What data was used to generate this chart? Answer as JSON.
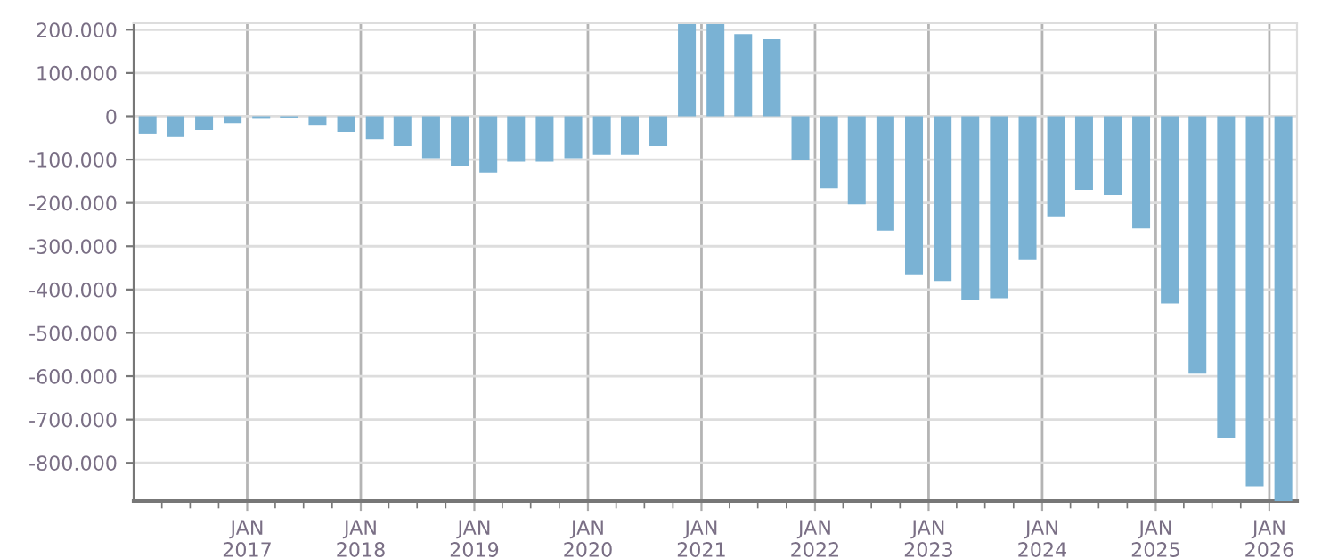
{
  "chart_data": {
    "type": "bar",
    "color": "#7ab2d4",
    "grid": true,
    "x": [
      "2016-02-15",
      "2016-05-15",
      "2016-08-15",
      "2016-11-15",
      "2017-02-15",
      "2017-05-15",
      "2017-08-15",
      "2017-11-15",
      "2018-02-15",
      "2018-05-15",
      "2018-08-15",
      "2018-11-15",
      "2019-02-15",
      "2019-05-15",
      "2019-08-15",
      "2019-11-15",
      "2020-02-15",
      "2020-05-15",
      "2020-08-15",
      "2020-11-15",
      "2021-02-15",
      "2021-05-15",
      "2021-08-15",
      "2021-11-15",
      "2022-02-15",
      "2022-05-15",
      "2022-08-15",
      "2022-11-15",
      "2023-02-15",
      "2023-05-15",
      "2023-08-15",
      "2023-11-15",
      "2024-02-15",
      "2024-05-15",
      "2024-08-15",
      "2024-11-15",
      "2025-02-15",
      "2025-05-15",
      "2025-08-15",
      "2025-11-15",
      "2026-02-15"
    ],
    "values": [
      -40000,
      -48000,
      -32000,
      -16000,
      -4000,
      -3000,
      -20000,
      -36000,
      -53000,
      -69000,
      -97000,
      -114000,
      -130000,
      -105000,
      -105000,
      -97000,
      -89000,
      -89000,
      -69000,
      213000,
      213000,
      190000,
      178000,
      -101000,
      -166000,
      -203000,
      -264000,
      -365000,
      -380000,
      -425000,
      -420000,
      -332000,
      -231000,
      -170000,
      -182000,
      -259000,
      -432000,
      -594000,
      -742000,
      -854000,
      -888000
    ],
    "ylim": [
      -888000,
      215000
    ],
    "yticks": [
      {
        "value": -800000,
        "label": "-800.000"
      },
      {
        "value": -700000,
        "label": "-700.000"
      },
      {
        "value": -600000,
        "label": "-600.000"
      },
      {
        "value": -500000,
        "label": "-500.000"
      },
      {
        "value": -400000,
        "label": "-400.000"
      },
      {
        "value": -300000,
        "label": "-300.000"
      },
      {
        "value": -200000,
        "label": "-200.000"
      },
      {
        "value": -100000,
        "label": "-100.000"
      },
      0,
      {
        "value": 100000,
        "label": "100.000"
      },
      {
        "value": 200000,
        "label": "200.000"
      }
    ],
    "xlim": [
      "2016-01-01",
      "2026-03-31"
    ],
    "xticks": [
      {
        "value": "2016-04-01",
        "label": null
      },
      {
        "value": "2016-07-01",
        "label": null
      },
      {
        "value": "2016-10-01",
        "label": null
      },
      {
        "value": "2017-01-01",
        "label": "JAN\n2017"
      },
      {
        "value": "2017-04-01",
        "label": null
      },
      {
        "value": "2017-07-01",
        "label": null
      },
      {
        "value": "2017-10-01",
        "label": null
      },
      {
        "value": "2018-01-01",
        "label": "JAN\n2018"
      },
      {
        "value": "2018-04-01",
        "label": null
      },
      {
        "value": "2018-07-01",
        "label": null
      },
      {
        "value": "2018-10-01",
        "label": null
      },
      {
        "value": "2019-01-01",
        "label": "JAN\n2019"
      },
      {
        "value": "2019-04-01",
        "label": null
      },
      {
        "value": "2019-07-01",
        "label": null
      },
      {
        "value": "2019-10-01",
        "label": null
      },
      {
        "value": "2020-01-01",
        "label": "JAN\n2020"
      },
      {
        "value": "2020-04-01",
        "label": null
      },
      {
        "value": "2020-07-01",
        "label": null
      },
      {
        "value": "2020-10-01",
        "label": null
      },
      {
        "value": "2021-01-01",
        "label": "JAN\n2021"
      },
      {
        "value": "2021-04-01",
        "label": null
      },
      {
        "value": "2021-07-01",
        "label": null
      },
      {
        "value": "2021-10-01",
        "label": null
      },
      {
        "value": "2022-01-01",
        "label": "JAN\n2022"
      },
      {
        "value": "2022-04-01",
        "label": null
      },
      {
        "value": "2022-07-01",
        "label": null
      },
      {
        "value": "2022-10-01",
        "label": null
      },
      {
        "value": "2023-01-01",
        "label": "JAN\n2023"
      },
      {
        "value": "2023-04-01",
        "label": null
      },
      {
        "value": "2023-07-01",
        "label": null
      },
      {
        "value": "2023-10-01",
        "label": null
      },
      {
        "value": "2024-01-01",
        "label": "JAN\n2024"
      },
      {
        "value": "2024-04-01",
        "label": null
      },
      {
        "value": "2024-07-01",
        "label": null
      },
      {
        "value": "2024-10-01",
        "label": null
      },
      {
        "value": "2025-01-01",
        "label": "JAN\n2025"
      },
      {
        "value": "2025-04-01",
        "label": null
      },
      {
        "value": "2025-07-01",
        "label": null
      },
      {
        "value": "2025-10-01",
        "label": null
      },
      {
        "value": "2026-01-01",
        "label": "JAN\n2026"
      }
    ]
  }
}
